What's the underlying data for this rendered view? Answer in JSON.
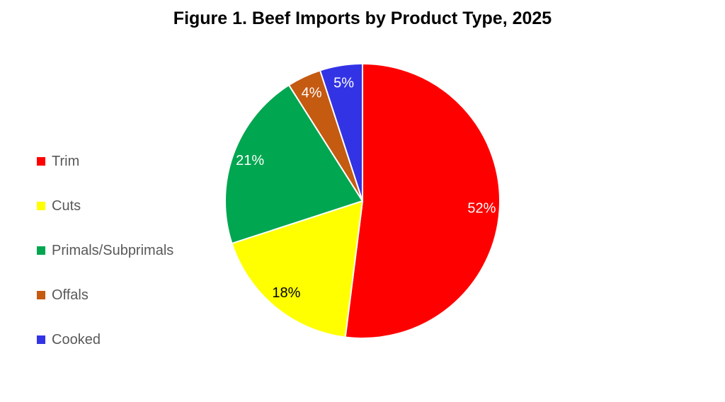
{
  "page": {
    "background_color": "#FFFFFF"
  },
  "chart_data": {
    "type": "pie",
    "title": "Figure 1. Beef Imports by Product Type, 2025",
    "legend_position": "left",
    "start_angle_deg": 0,
    "direction": "clockwise",
    "total": 100,
    "slices": [
      {
        "label": "Trim",
        "value": 52,
        "data_label": "52%",
        "color": "#FF0000",
        "data_label_color": "#FFFFFF"
      },
      {
        "label": "Cuts",
        "value": 18,
        "data_label": "18%",
        "color": "#FFFF00",
        "data_label_color": "#000000"
      },
      {
        "label": "Primals/Subprimals",
        "value": 21,
        "data_label": "21%",
        "color": "#00A650",
        "data_label_color": "#FFFFFF"
      },
      {
        "label": "Offals",
        "value": 4,
        "data_label": "4%",
        "color": "#C55A11",
        "data_label_color": "#FFFFFF"
      },
      {
        "label": "Cooked",
        "value": 5,
        "data_label": "5%",
        "color": "#3333E6",
        "data_label_color": "#FFFFFF"
      }
    ],
    "styles": {
      "slice_border_color": "#FFFFFF",
      "slice_border_width": 2,
      "legend_text_color": "#595959",
      "title_color": "#000000",
      "data_label_radius_ratio": 0.87
    }
  }
}
